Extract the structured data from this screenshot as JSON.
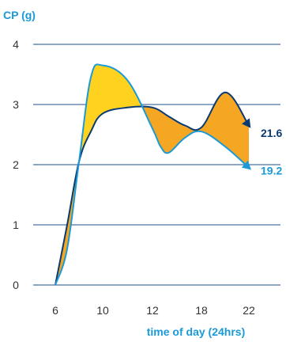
{
  "chart_data": {
    "type": "line",
    "title": "",
    "ylabel": "CP (g)",
    "xlabel": "time of day (24hrs)",
    "categories": [
      "6",
      "10",
      "12",
      "18",
      "22"
    ],
    "yticks": [
      "0",
      "1",
      "2",
      "3",
      "4"
    ],
    "ylim": [
      0,
      4
    ],
    "grid": true,
    "series": [
      {
        "name": "",
        "color": "#0a3a73",
        "end_label": "21.6",
        "points": [
          [
            6,
            0
          ],
          [
            7,
            1.0
          ],
          [
            8,
            2.05
          ],
          [
            9,
            2.55
          ],
          [
            10,
            2.85
          ],
          [
            11,
            2.95
          ],
          [
            12,
            2.95
          ],
          [
            14,
            2.8
          ],
          [
            16,
            2.65
          ],
          [
            18,
            2.62
          ],
          [
            20,
            3.2
          ],
          [
            22,
            2.65
          ]
        ]
      },
      {
        "name": "",
        "color": "#1a9ad6",
        "end_label": "19.2",
        "points": [
          [
            6,
            0
          ],
          [
            7,
            0.6
          ],
          [
            8,
            2.05
          ],
          [
            9,
            3.45
          ],
          [
            10,
            3.65
          ],
          [
            11,
            3.4
          ],
          [
            12,
            2.6
          ],
          [
            13,
            2.3
          ],
          [
            14,
            2.2
          ],
          [
            16,
            2.45
          ],
          [
            18,
            2.55
          ],
          [
            20,
            2.3
          ],
          [
            22,
            1.95
          ]
        ]
      }
    ],
    "fills": [
      {
        "region": "light-above-dark",
        "color": "#f5a623"
      },
      {
        "region": "dark-above-light",
        "color": "#ffd21f"
      }
    ]
  }
}
